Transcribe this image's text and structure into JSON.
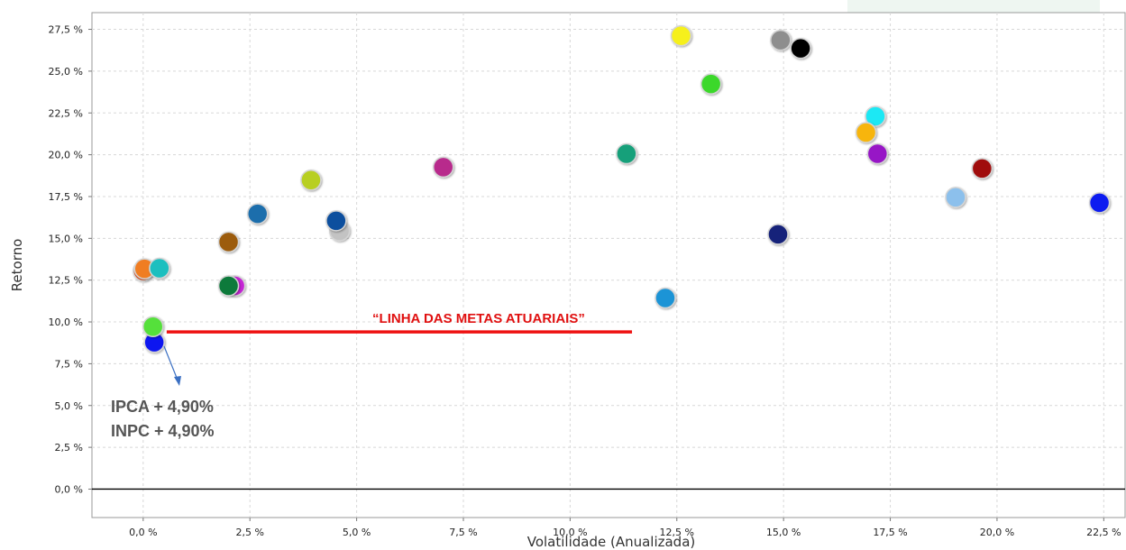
{
  "chart_data": {
    "type": "scatter",
    "xlabel": "Volatilidade (Anualizada)",
    "ylabel": "Retorno",
    "xlim": [
      -0.012,
      0.23
    ],
    "ylim": [
      -0.017,
      0.285
    ],
    "x_ticks": [
      {
        "v": 0.0,
        "label": "0,0 %"
      },
      {
        "v": 0.025,
        "label": "2,5 %"
      },
      {
        "v": 0.05,
        "label": "5,0 %"
      },
      {
        "v": 0.075,
        "label": "7,5 %"
      },
      {
        "v": 0.1,
        "label": "10,0 %"
      },
      {
        "v": 0.125,
        "label": "12,5 %"
      },
      {
        "v": 0.15,
        "label": "15,0 %"
      },
      {
        "v": 0.175,
        "label": "17,5 %"
      },
      {
        "v": 0.2,
        "label": "20,0 %"
      },
      {
        "v": 0.225,
        "label": "22,5 %"
      }
    ],
    "y_ticks": [
      {
        "v": 0.0,
        "label": "0,0 %"
      },
      {
        "v": 0.025,
        "label": "2,5 %"
      },
      {
        "v": 0.05,
        "label": "5,0 %"
      },
      {
        "v": 0.075,
        "label": "7,5 %"
      },
      {
        "v": 0.1,
        "label": "10,0 %"
      },
      {
        "v": 0.125,
        "label": "12,5 %"
      },
      {
        "v": 0.15,
        "label": "15,0 %"
      },
      {
        "v": 0.175,
        "label": "17,5 %"
      },
      {
        "v": 0.2,
        "label": "20,0 %"
      },
      {
        "v": 0.225,
        "label": "22,5 %"
      },
      {
        "v": 0.25,
        "label": "25,0 %"
      },
      {
        "v": 0.275,
        "label": "27,5 %"
      }
    ],
    "grid": true,
    "points": [
      {
        "x": 0.0,
        "y": 0.1305,
        "color": "#e35a2b"
      },
      {
        "x": 0.0003,
        "y": 0.1318,
        "color": "#f07d23"
      },
      {
        "x": 0.0038,
        "y": 0.1321,
        "color": "#1bbfbf"
      },
      {
        "x": 0.0026,
        "y": 0.0878,
        "color": "#0b14f0"
      },
      {
        "x": 0.0023,
        "y": 0.0972,
        "color": "#54e03a"
      },
      {
        "x": 0.0215,
        "y": 0.1216,
        "color": "#c627d6"
      },
      {
        "x": 0.02,
        "y": 0.1216,
        "color": "#0b7a3a"
      },
      {
        "x": 0.02,
        "y": 0.1478,
        "color": "#9c5c0c"
      },
      {
        "x": 0.0268,
        "y": 0.1647,
        "color": "#1f6eac"
      },
      {
        "x": 0.0393,
        "y": 0.1848,
        "color": "#b8cf23"
      },
      {
        "x": 0.046,
        "y": 0.1545,
        "color": "#c3c3c3"
      },
      {
        "x": 0.0452,
        "y": 0.1605,
        "color": "#104f9e"
      },
      {
        "x": 0.0703,
        "y": 0.1926,
        "color": "#b82a8c"
      },
      {
        "x": 0.1132,
        "y": 0.2006,
        "color": "#13a07a"
      },
      {
        "x": 0.1223,
        "y": 0.1143,
        "color": "#1e94d6"
      },
      {
        "x": 0.126,
        "y": 0.2712,
        "color": "#f6f01f"
      },
      {
        "x": 0.133,
        "y": 0.2423,
        "color": "#3ad82c"
      },
      {
        "x": 0.1487,
        "y": 0.1524,
        "color": "#17227a"
      },
      {
        "x": 0.1493,
        "y": 0.2685,
        "color": "#8e8e8e"
      },
      {
        "x": 0.154,
        "y": 0.2636,
        "color": "#000000"
      },
      {
        "x": 0.1715,
        "y": 0.223,
        "color": "#1ee8f4"
      },
      {
        "x": 0.1693,
        "y": 0.2133,
        "color": "#f7b50c"
      },
      {
        "x": 0.172,
        "y": 0.2006,
        "color": "#9713c6"
      },
      {
        "x": 0.1903,
        "y": 0.1745,
        "color": "#8cc0ec"
      },
      {
        "x": 0.1965,
        "y": 0.1918,
        "color": "#a00d0d"
      },
      {
        "x": 0.224,
        "y": 0.1713,
        "color": "#0b1ff0"
      }
    ],
    "annotations": {
      "meta_line": {
        "label": "“LINHA DAS METAS ATUARIAIS”",
        "y": 0.094,
        "x_start": 0.0055,
        "x_end": 0.1145,
        "color": "#ee1111"
      },
      "ipca": "IPCA + 4,90%",
      "inpc": "INPC + 4,90%",
      "arrow_color": "#3a6fc2"
    },
    "colors": {
      "grid": "#d8d8d8",
      "zero_line": "#000000",
      "frame": "#9a9a9a"
    }
  }
}
